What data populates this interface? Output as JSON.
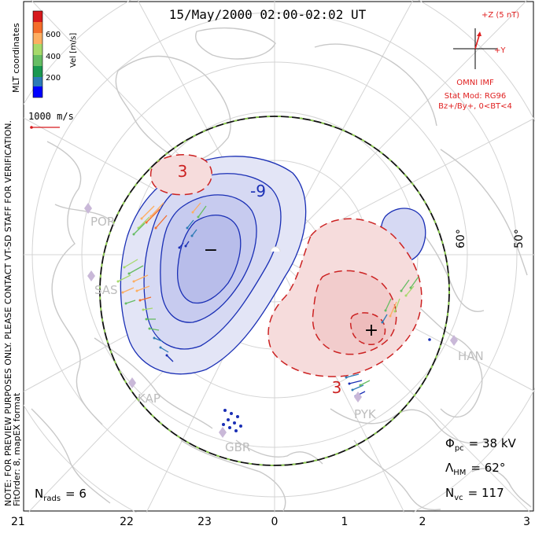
{
  "title": "15/May/2000 02:00-02:02 UT",
  "colorbar": {
    "label": "Vel [m/s]",
    "ticks": [
      "600",
      "400",
      "200"
    ],
    "colors": [
      "#d7191c",
      "#f46d2a",
      "#fdae61",
      "#a6d96a",
      "#66bd63",
      "#1a9850",
      "#2c7bb6",
      "#0000ff"
    ]
  },
  "coordinate_label": "MLT coordinates",
  "scale_vector_label": "1000 m/s",
  "side_note_1": "NOTE: FOR PREVIEW PURPOSES ONLY. PLEASE CONTACT VT-SD STAFF FOR VERIFICATION.",
  "side_note_2": "FitOrder: 8, mapEX format",
  "imf": {
    "plus_z": "+Z (5 nT)",
    "plus_y": "+Y",
    "source": "OMNI IMF",
    "stat_mod": "Stat Mod: RG96",
    "condition": "Bz+/By+, 0<BT<4",
    "color": "#e02020"
  },
  "contour_labels": {
    "neg_a": "-9",
    "pos_a": "3",
    "pos_b": "3",
    "min_marker": "−",
    "max_marker": "+"
  },
  "latitude_labels": [
    "60°",
    "50°"
  ],
  "stations": [
    "POR",
    "SAS",
    "KAP",
    "GBR",
    "PYK",
    "HAN"
  ],
  "mlt_axis": [
    "21",
    "22",
    "23",
    "0",
    "1",
    "2",
    "3"
  ],
  "stats": {
    "nrads": {
      "sym": "N",
      "sub": "rads",
      "value": "= 6"
    },
    "phi": {
      "sym": "Φ",
      "sub": "pc",
      "value": "= 38 kV"
    },
    "lambda": {
      "sym": "Λ",
      "sub": "HM",
      "value": "= 62°"
    },
    "nvc": {
      "sym": "N",
      "sub": "vc",
      "value": "= 117"
    }
  },
  "colors": {
    "negative_fill": "#c9cdf0",
    "negative_line": "#1a2fb5",
    "positive_fill": "#f4d4d4",
    "positive_line": "#cc2222",
    "coast": "#c8c8c8"
  }
}
